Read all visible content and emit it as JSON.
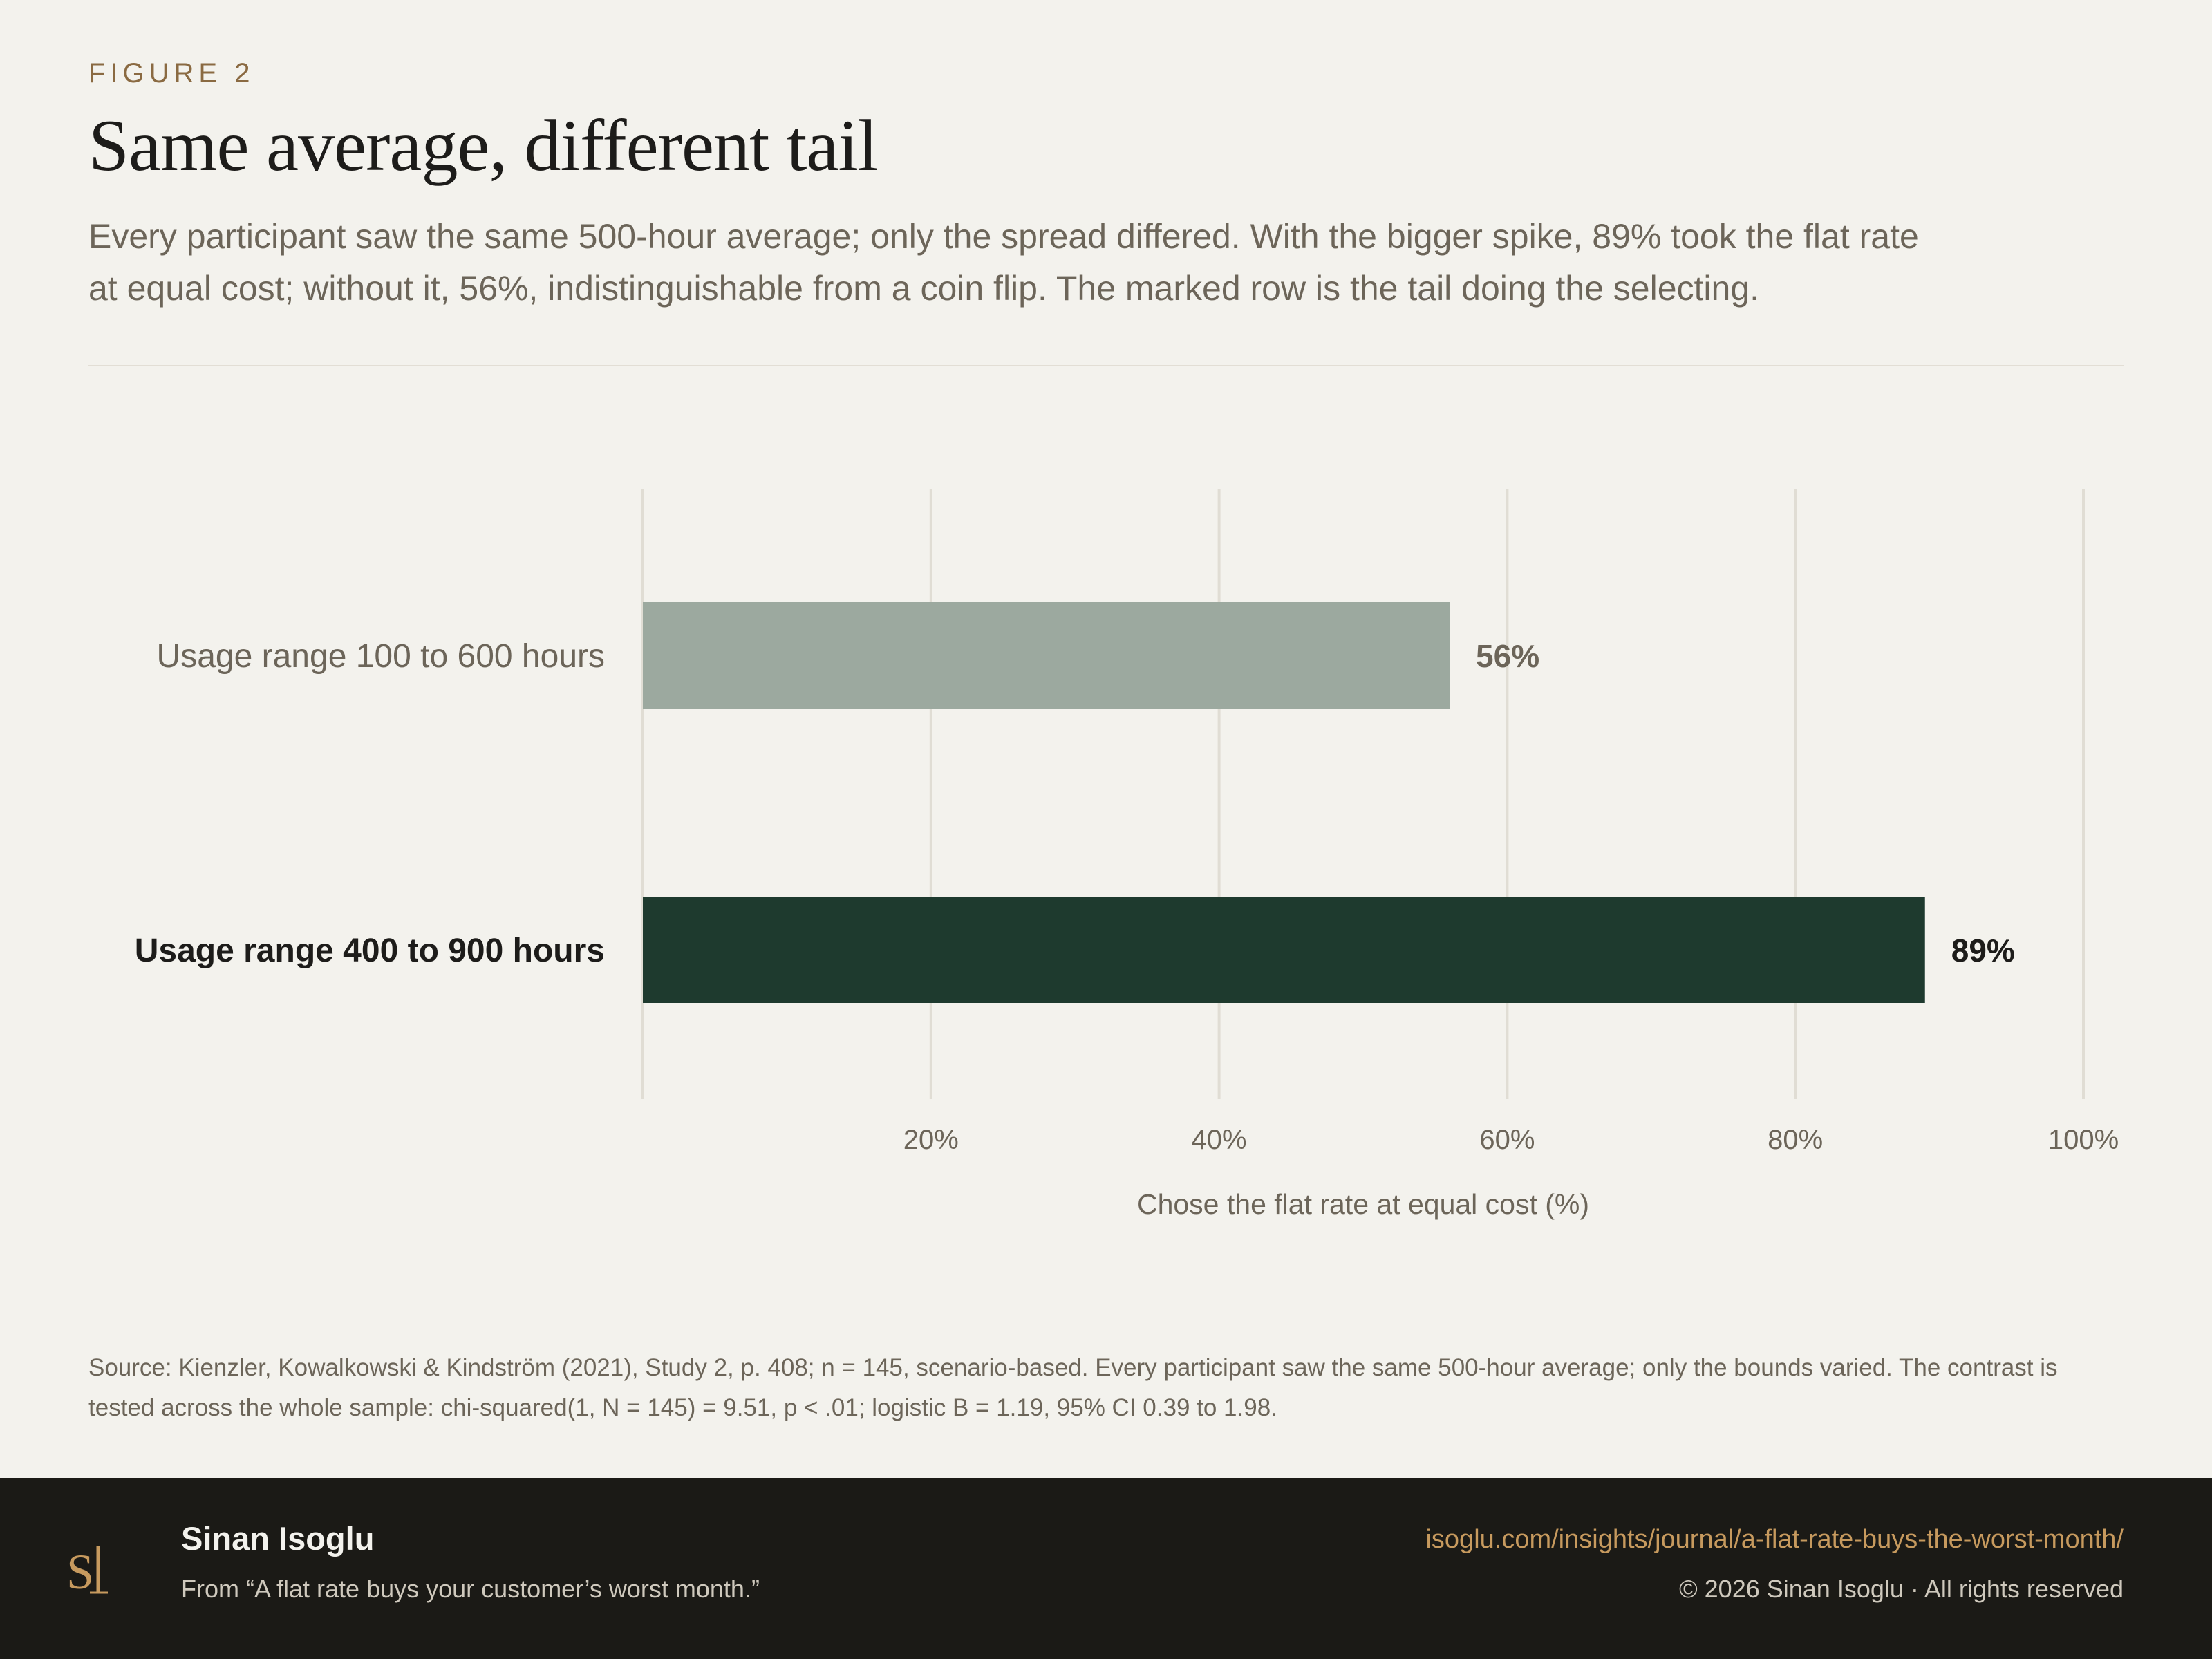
{
  "header": {
    "eyebrow": "FIGURE 2",
    "title": "Same average, different tail",
    "subtitle": "Every participant saw the same 500-hour average; only the spread differed. With the bigger spike, 89% took the flat rate at equal cost; without it, 56%, indistinguishable from a coin flip. The marked row is the tail doing the selecting."
  },
  "chart_data": {
    "type": "bar",
    "orientation": "horizontal",
    "categories": [
      "Usage range 100 to 600 hours",
      "Usage range 400 to 900 hours"
    ],
    "values": [
      56,
      89
    ],
    "value_labels": [
      "56%",
      "89%"
    ],
    "highlighted_index": 1,
    "xlabel": "Chose the flat rate at equal cost (%)",
    "xlim": [
      0,
      100
    ],
    "xticks": [
      20,
      40,
      60,
      80,
      100
    ],
    "xtick_labels": [
      "20%",
      "40%",
      "60%",
      "80%",
      "100%"
    ],
    "grid": true,
    "colors": {
      "default": "#9ca99f",
      "highlight": "#1e3a2e",
      "grid": "#e0ddd4"
    }
  },
  "source": "Source: Kienzler, Kowalkowski & Kindström (2021), Study 2, p. 408; n = 145, scenario-based. Every participant saw the same 500-hour average; only the bounds varied. The contrast is tested across the whole sample: chi-squared(1, N = 145) = 9.51, p < .01; logistic B = 1.19, 95% CI 0.39 to 1.98.",
  "footer": {
    "logo_icon": "si-monogram-icon",
    "author": "Sinan Isoglu",
    "from": "From “A flat rate buys your customer’s worst month.”",
    "url": "isoglu.com/insights/journal/a-flat-rate-buys-the-worst-month/",
    "copyright": "© 2026 Sinan Isoglu · All rights reserved"
  }
}
